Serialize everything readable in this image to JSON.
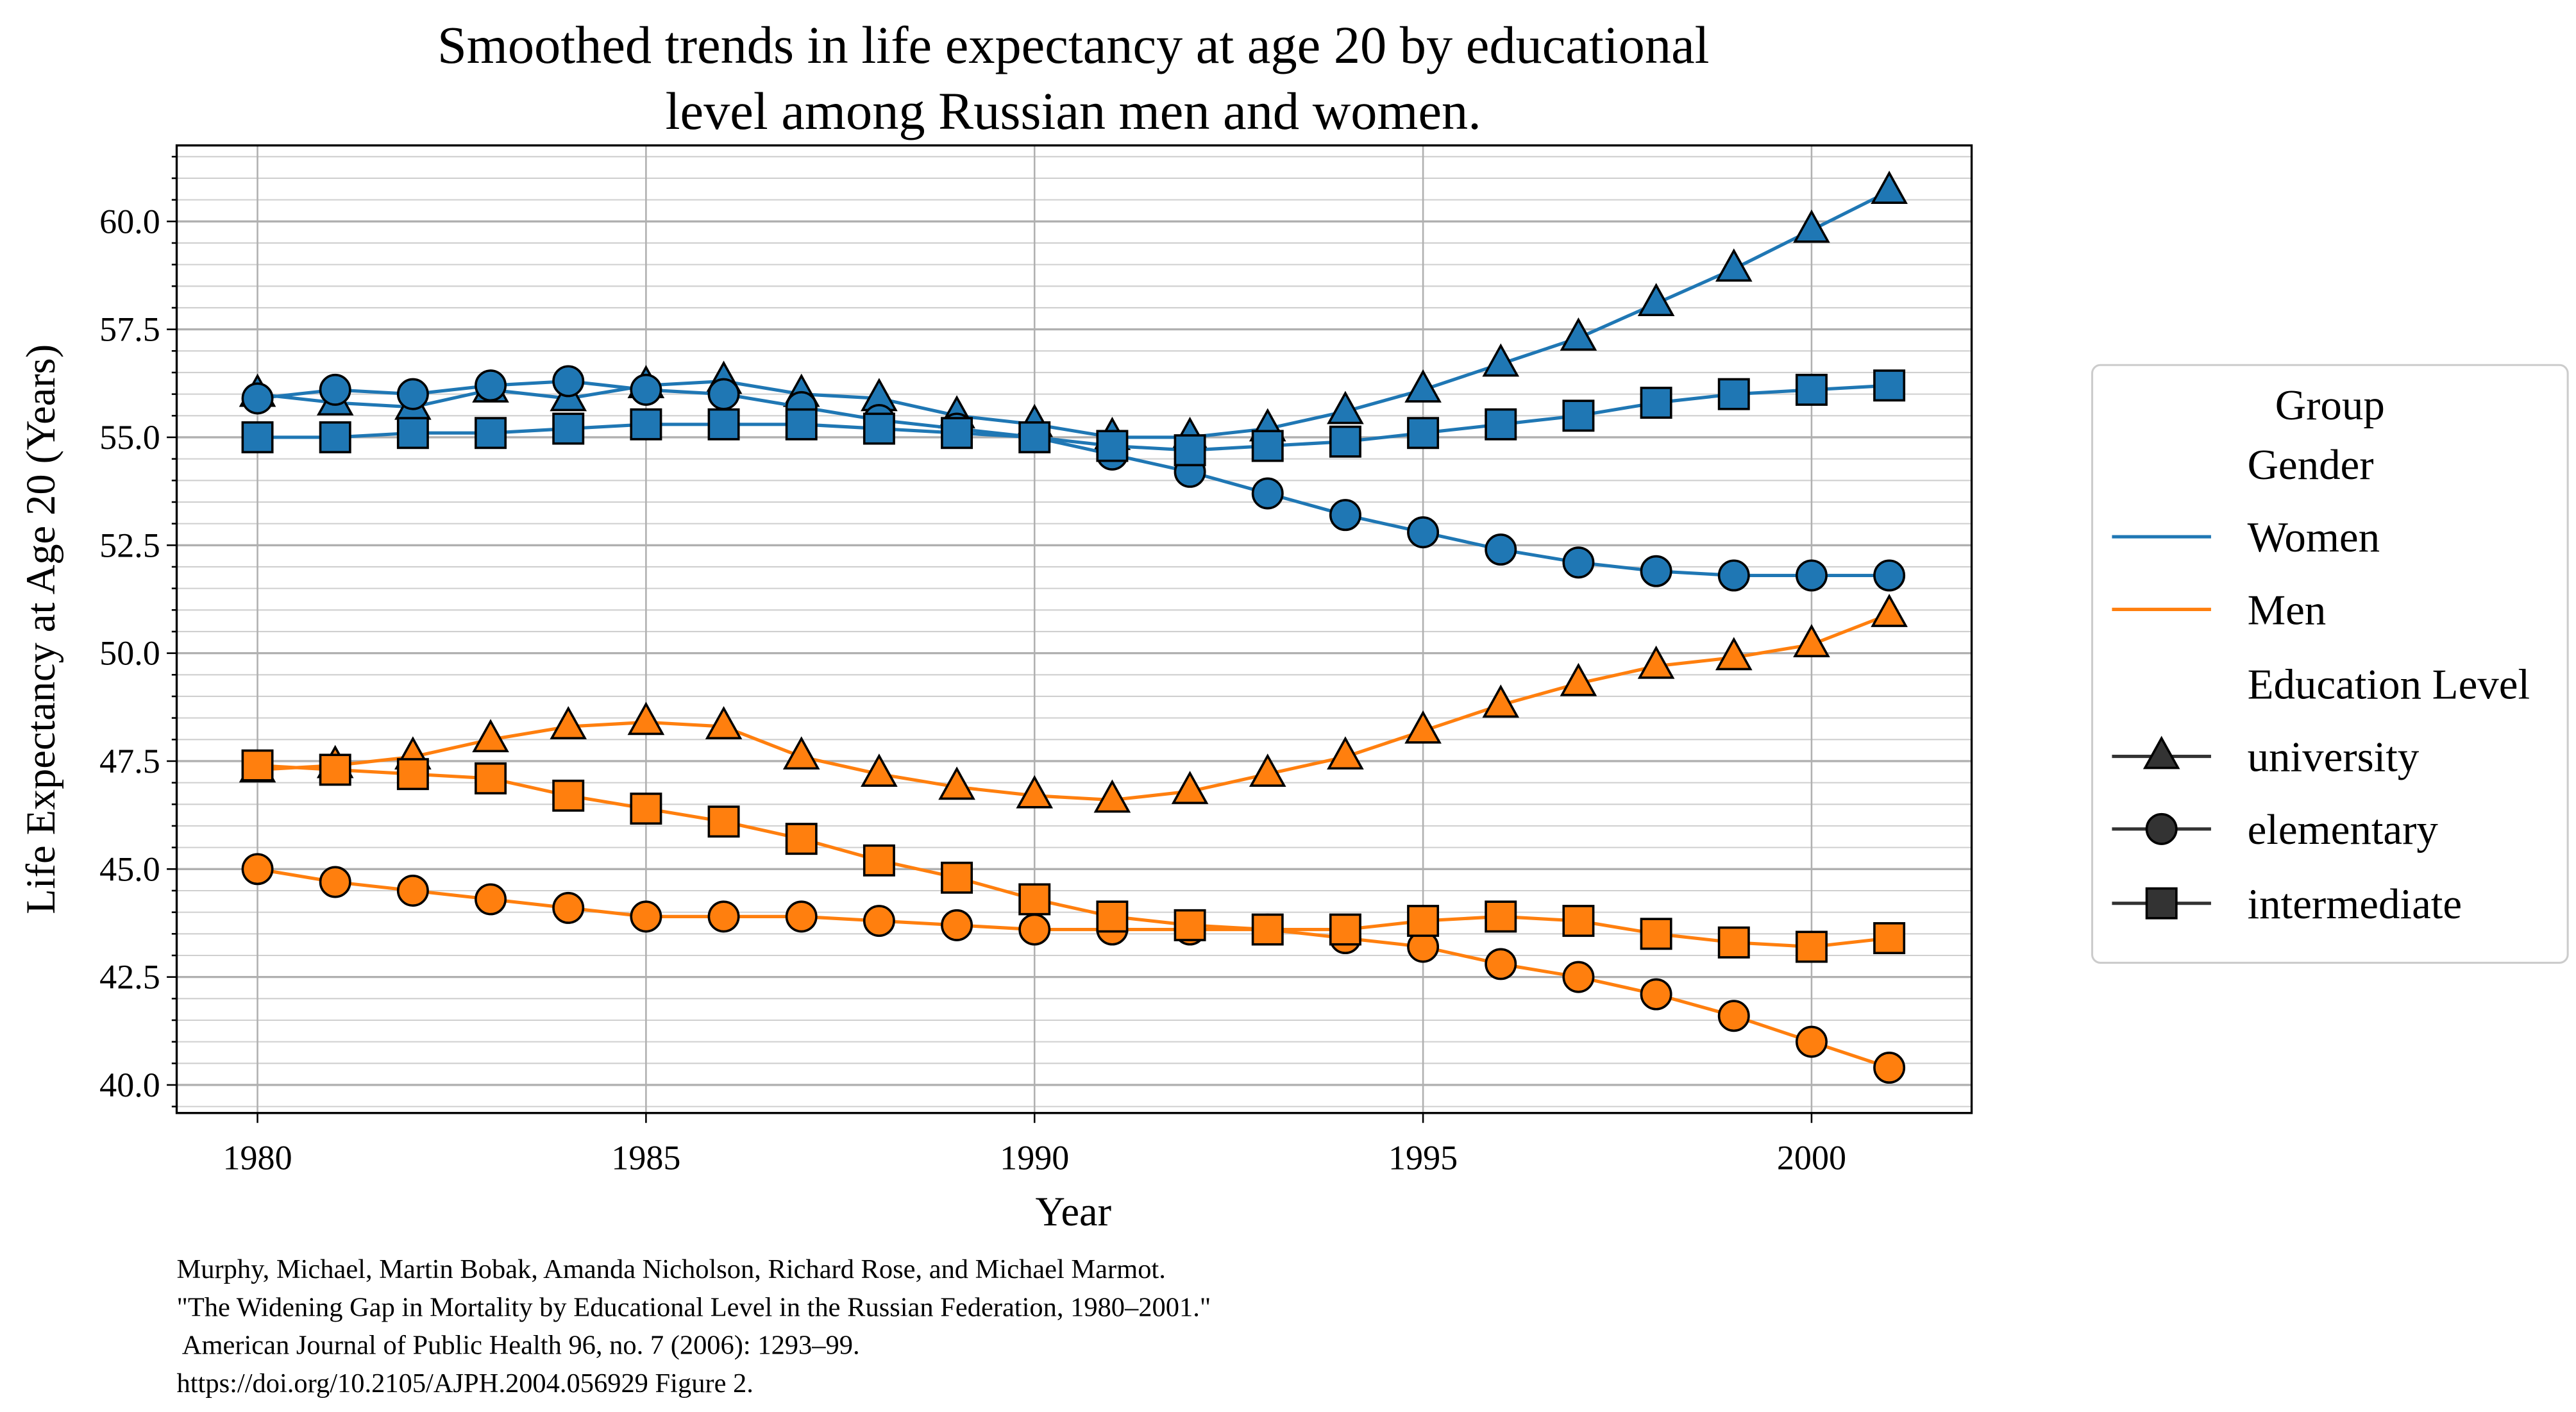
{
  "chart_data": {
    "type": "line",
    "title": [
      "Smoothed trends in life expectancy at age 20 by educational",
      "level among Russian men and women."
    ],
    "xlabel": "Year",
    "ylabel": "Life Expectancy at Age 20 (Years)",
    "xlim": [
      1978.96,
      2002.06
    ],
    "ylim": [
      39.35,
      61.76
    ],
    "xticks": [
      1980,
      1985,
      1990,
      1995,
      2000
    ],
    "xtick_labels": [
      "1980",
      "1985",
      "1990",
      "1995",
      "2000"
    ],
    "yticks": [
      40,
      42.5,
      45,
      47.5,
      50,
      52.5,
      55,
      57.5,
      60
    ],
    "ytick_labels": [
      "40.0",
      "42.5",
      "45.0",
      "47.5",
      "50.0",
      "52.5",
      "55.0",
      "57.5",
      "60.0"
    ],
    "grid": true,
    "x": [
      1980,
      1981,
      1982,
      1983,
      1984,
      1985,
      1986,
      1987,
      1988,
      1989,
      1990,
      1991,
      1992,
      1993,
      1994,
      1995,
      1996,
      1997,
      1998,
      1999,
      2000,
      2001
    ],
    "colors": {
      "Women": "#1f77b4",
      "Men": "#ff7f0e"
    },
    "series": [
      {
        "name": "Women university",
        "gender": "Women",
        "education": "university",
        "marker": "triangle",
        "values": [
          56.0,
          55.8,
          55.7,
          56.1,
          55.9,
          56.2,
          56.3,
          56.0,
          55.9,
          55.5,
          55.3,
          55.0,
          55.0,
          55.2,
          55.6,
          56.1,
          56.7,
          57.3,
          58.1,
          58.9,
          59.8,
          60.7
        ]
      },
      {
        "name": "Women elementary",
        "gender": "Women",
        "education": "elementary",
        "marker": "circle",
        "values": [
          55.9,
          56.1,
          56.0,
          56.2,
          56.3,
          56.1,
          56.0,
          55.7,
          55.4,
          55.2,
          55.0,
          54.6,
          54.2,
          53.7,
          53.2,
          52.8,
          52.4,
          52.1,
          51.9,
          51.8,
          51.8,
          51.8
        ]
      },
      {
        "name": "Women intermediate",
        "gender": "Women",
        "education": "intermediate",
        "marker": "square",
        "values": [
          55.0,
          55.0,
          55.1,
          55.1,
          55.2,
          55.3,
          55.3,
          55.3,
          55.2,
          55.1,
          55.0,
          54.8,
          54.7,
          54.8,
          54.9,
          55.1,
          55.3,
          55.5,
          55.8,
          56.0,
          56.1,
          56.2
        ]
      },
      {
        "name": "Men university",
        "gender": "Men",
        "education": "university",
        "marker": "triangle",
        "values": [
          47.3,
          47.4,
          47.6,
          48.0,
          48.3,
          48.4,
          48.3,
          47.6,
          47.2,
          46.9,
          46.7,
          46.6,
          46.8,
          47.2,
          47.6,
          48.2,
          48.8,
          49.3,
          49.7,
          49.9,
          50.2,
          50.9
        ]
      },
      {
        "name": "Men elementary",
        "gender": "Men",
        "education": "elementary",
        "marker": "circle",
        "values": [
          45.0,
          44.7,
          44.5,
          44.3,
          44.1,
          43.9,
          43.9,
          43.9,
          43.8,
          43.7,
          43.6,
          43.6,
          43.6,
          43.6,
          43.4,
          43.2,
          42.8,
          42.5,
          42.1,
          41.6,
          41.0,
          40.4
        ]
      },
      {
        "name": "Men intermediate",
        "gender": "Men",
        "education": "intermediate",
        "marker": "square",
        "values": [
          47.4,
          47.3,
          47.2,
          47.1,
          46.7,
          46.4,
          46.1,
          45.7,
          45.2,
          44.8,
          44.3,
          43.9,
          43.7,
          43.6,
          43.6,
          43.8,
          43.9,
          43.8,
          43.5,
          43.3,
          43.2,
          43.4
        ]
      }
    ],
    "legend": {
      "placement": "right",
      "title": "Group",
      "entries": [
        {
          "label": "Gender",
          "kind": "header"
        },
        {
          "label": "Women",
          "kind": "line",
          "color": "#1f77b4"
        },
        {
          "label": "Men",
          "kind": "line",
          "color": "#ff7f0e"
        },
        {
          "label": "Education Level",
          "kind": "header"
        },
        {
          "label": "university",
          "kind": "marker",
          "marker": "triangle"
        },
        {
          "label": "elementary",
          "kind": "marker",
          "marker": "circle"
        },
        {
          "label": "intermediate",
          "kind": "marker",
          "marker": "square"
        }
      ]
    },
    "caption": [
      "Murphy, Michael, Martin Bobak, Amanda Nicholson, Richard Rose, and Michael Marmot.",
      "\"The Widening Gap in Mortality by Educational Level in the Russian Federation, 1980–2001.\"",
      " American Journal of Public Health 96, no. 7 (2006): 1293–99.",
      "https://doi.org/10.2105/AJPH.2004.056929 Figure 2."
    ]
  }
}
